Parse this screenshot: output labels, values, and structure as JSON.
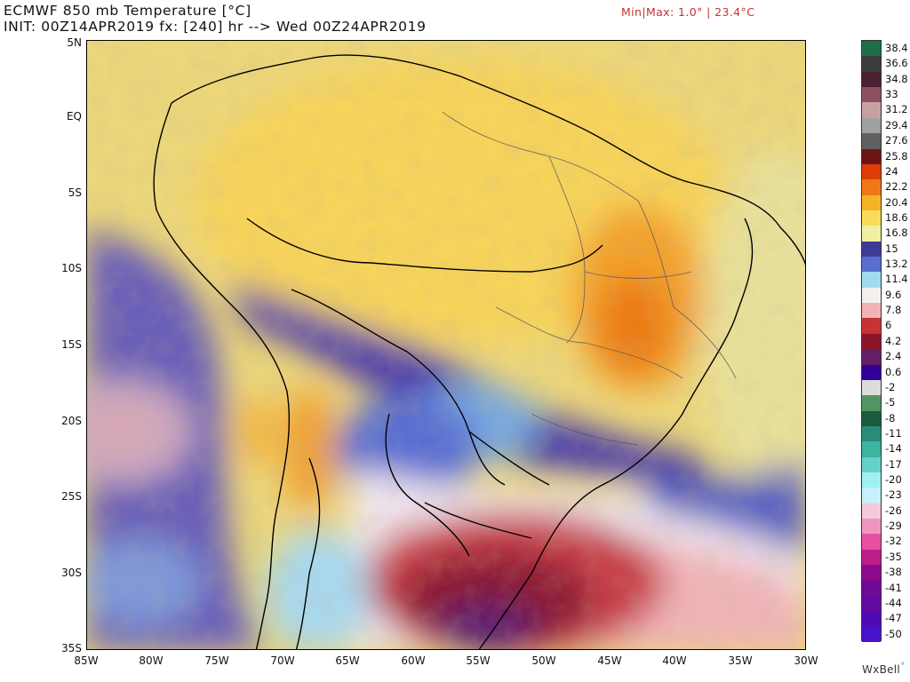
{
  "header": {
    "title": "ECMWF 850 mb Temperature [°C]",
    "subtitle": "INIT: 00Z14APR2019 fx: [240] hr --> Wed 00Z24APR2019",
    "minmax": "Min|Max: 1.0° | 23.4°C"
  },
  "axes": {
    "lat_labels": [
      "5N",
      "EQ",
      "5S",
      "10S",
      "15S",
      "20S",
      "25S",
      "30S",
      "35S"
    ],
    "lon_labels": [
      "85W",
      "80W",
      "75W",
      "70W",
      "65W",
      "60W",
      "55W",
      "50W",
      "45W",
      "40W",
      "35W",
      "30W"
    ]
  },
  "colorbar": {
    "labels": [
      "38.4",
      "36.6",
      "34.8",
      "33",
      "31.2",
      "29.4",
      "27.6",
      "25.8",
      "24",
      "22.2",
      "20.4",
      "18.6",
      "16.8",
      "15",
      "13.2",
      "11.4",
      "9.6",
      "7.8",
      "6",
      "4.2",
      "2.4",
      "0.6",
      "-2",
      "-5",
      "-8",
      "-11",
      "-14",
      "-17",
      "-20",
      "-23",
      "-26",
      "-29",
      "-32",
      "-35",
      "-38",
      "-41",
      "-44",
      "-47",
      "-50"
    ],
    "colors": [
      "#1e6e4a",
      "#3c3c3c",
      "#4a2032",
      "#8c5060",
      "#c8a0a0",
      "#a0a0a0",
      "#606060",
      "#6e1414",
      "#e03c0a",
      "#f07814",
      "#f5b428",
      "#fadc5a",
      "#f0f0a0",
      "#3c3c96",
      "#5a6ed2",
      "#a0dcf0",
      "#f5f0f0",
      "#f0b4b4",
      "#c83232",
      "#8c1428",
      "#641e64",
      "#320096",
      "#dcdcdc",
      "#509664",
      "#1e5a3c",
      "#288c78",
      "#3cb4a0",
      "#64d2c8",
      "#a0f0f0",
      "#c8f0fa",
      "#f5c8dc",
      "#f096be",
      "#e650a0",
      "#be1e8c",
      "#8c0a8c",
      "#6e0a96",
      "#640aa0",
      "#500ab4",
      "#4614c8"
    ]
  },
  "brand": "WxBell"
}
